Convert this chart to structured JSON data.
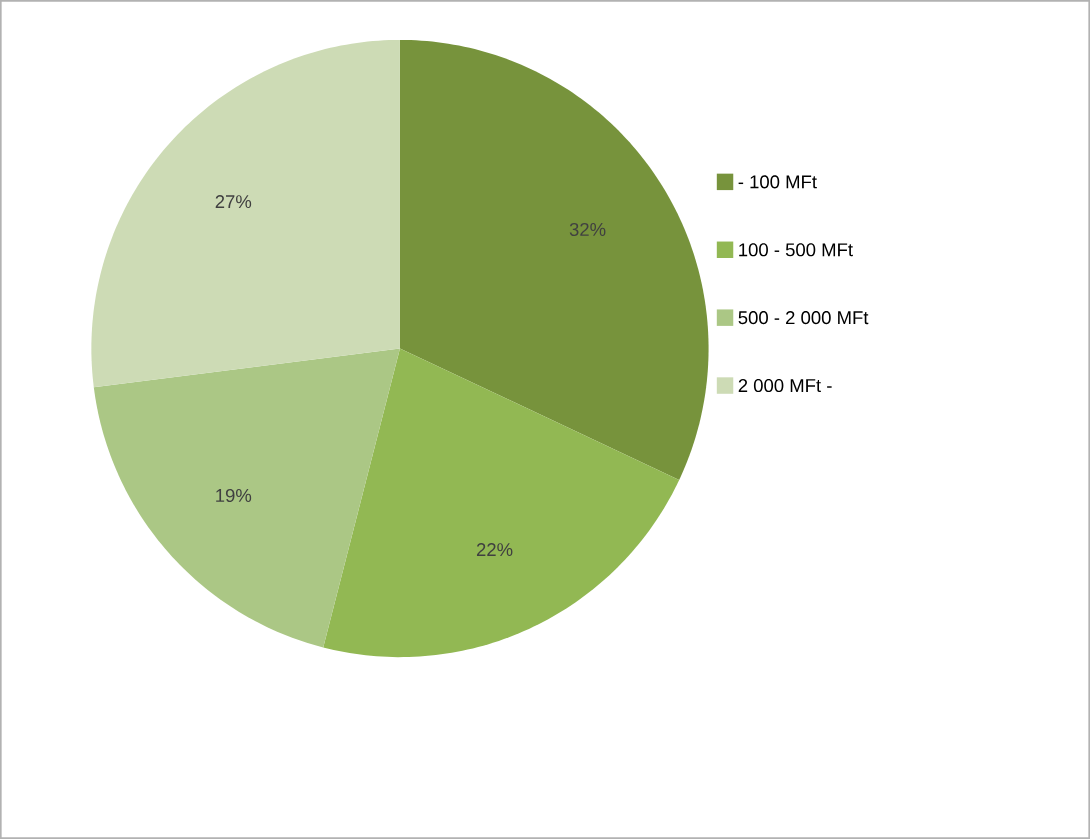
{
  "chart_data": {
    "type": "pie",
    "categories": [
      "- 100 MFt",
      "100 - 500 MFt",
      "500 - 2 000 MFt",
      "2 000 MFt -"
    ],
    "values": [
      32,
      22,
      19,
      27
    ],
    "value_labels": [
      "32%",
      "22%",
      "19%",
      "27%"
    ],
    "colors": [
      "#77933c",
      "#92b853",
      "#abc785",
      "#cddbb5"
    ],
    "legend": "right"
  }
}
